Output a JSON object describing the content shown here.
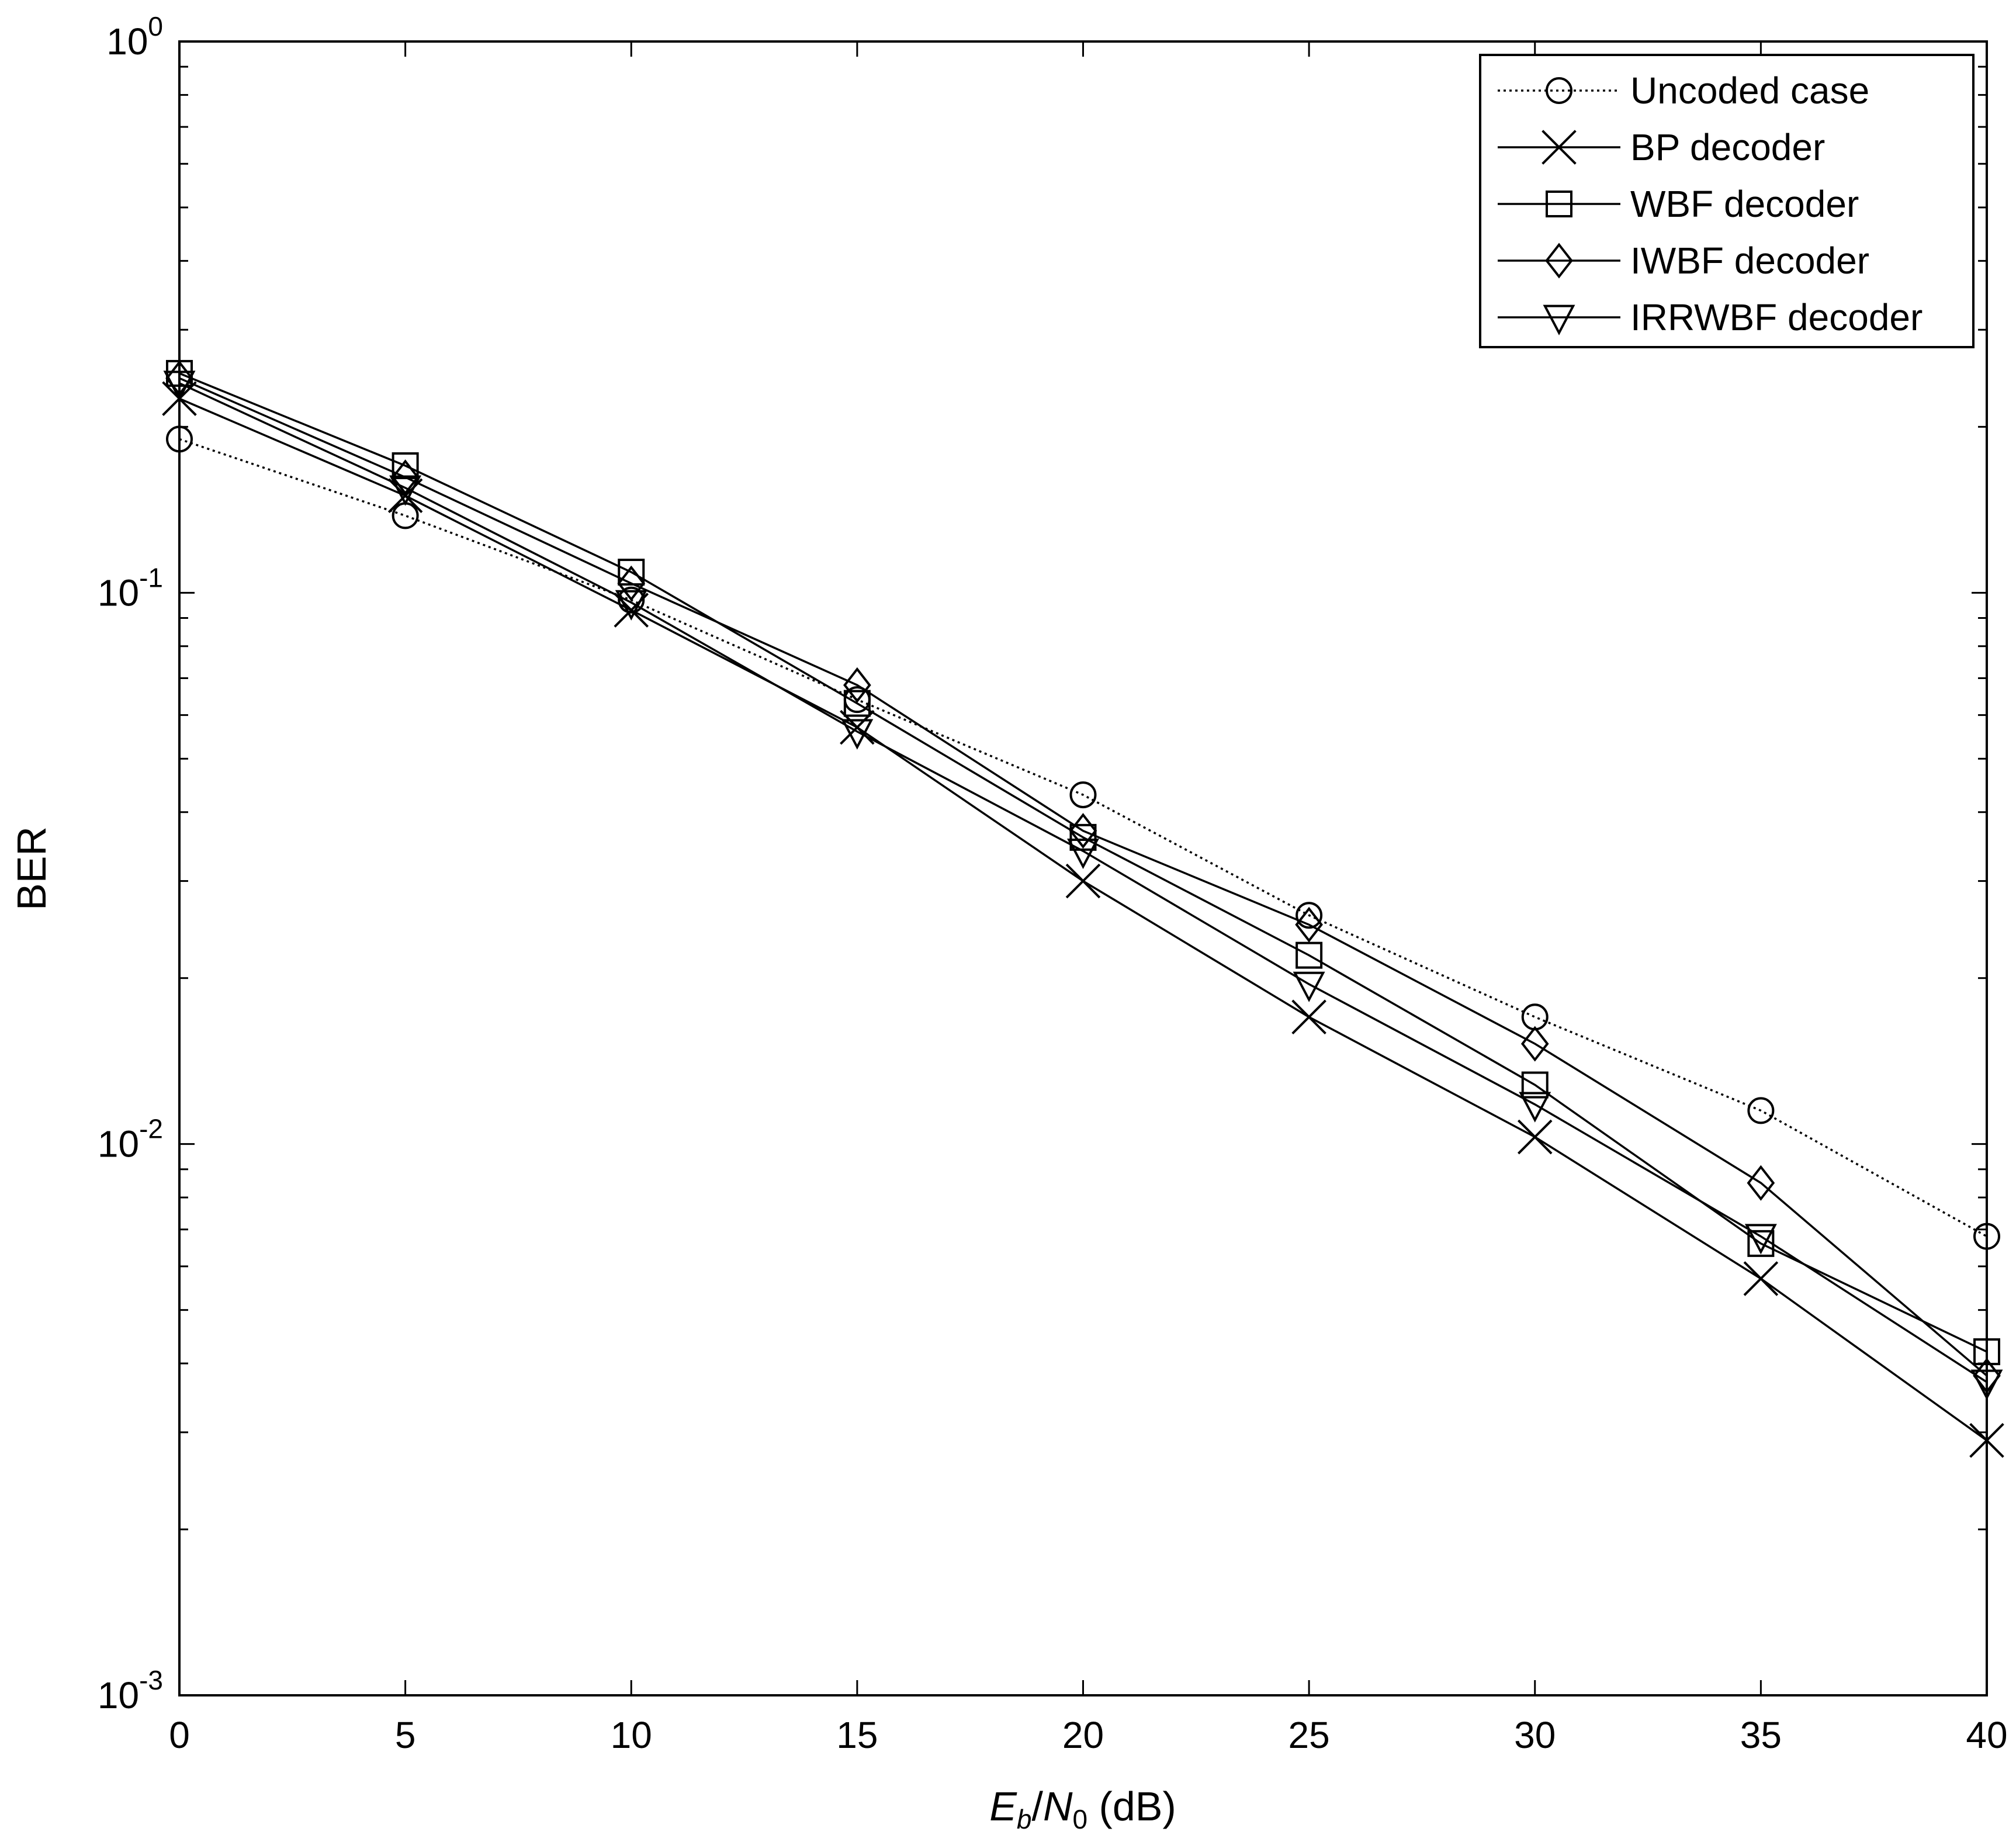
{
  "chart_data": {
    "type": "line",
    "xlabel": {
      "var_main": "E",
      "var_sub": "b",
      "sep": "/",
      "var2_main": "N",
      "var2_sub": "0",
      "unit": " (dB)"
    },
    "ylabel": "BER",
    "x_scale": "linear",
    "y_scale": "log",
    "xlim": [
      0,
      40
    ],
    "ylim": [
      0.001,
      1
    ],
    "x_ticks": [
      0,
      5,
      10,
      15,
      20,
      25,
      30,
      35,
      40
    ],
    "x_tick_labels": [
      "0",
      "5",
      "10",
      "15",
      "20",
      "25",
      "30",
      "35",
      "40"
    ],
    "y_decades": [
      {
        "value": 0.001,
        "base": "10",
        "exp": "-3"
      },
      {
        "value": 0.01,
        "base": "10",
        "exp": "-2"
      },
      {
        "value": 0.1,
        "base": "10",
        "exp": "-1"
      },
      {
        "value": 1,
        "base": "10",
        "exp": "0"
      }
    ],
    "grid": false,
    "legend_position": "top-right",
    "x": [
      0,
      5,
      10,
      15,
      20,
      25,
      30,
      35,
      40
    ],
    "series": [
      {
        "name": "Uncoded case",
        "marker": "circle",
        "line": "dotted",
        "color": "#000000",
        "values": [
          0.19,
          0.138,
          0.097,
          0.064,
          0.043,
          0.026,
          0.017,
          0.0115,
          0.0068
        ]
      },
      {
        "name": "BP decoder",
        "marker": "x",
        "line": "solid",
        "color": "#000000",
        "values": [
          0.225,
          0.15,
          0.093,
          0.057,
          0.03,
          0.017,
          0.0103,
          0.0057,
          0.0029
        ]
      },
      {
        "name": "WBF decoder",
        "marker": "square",
        "line": "solid",
        "color": "#000000",
        "values": [
          0.25,
          0.17,
          0.109,
          0.063,
          0.036,
          0.022,
          0.0128,
          0.0066,
          0.0042
        ]
      },
      {
        "name": "IWBF decoder",
        "marker": "diamond",
        "line": "solid",
        "color": "#000000",
        "values": [
          0.245,
          0.162,
          0.104,
          0.068,
          0.037,
          0.025,
          0.0152,
          0.0085,
          0.0038
        ]
      },
      {
        "name": "IRRWBF decoder",
        "marker": "triangle-down",
        "line": "solid",
        "color": "#000000",
        "values": [
          0.24,
          0.155,
          0.096,
          0.056,
          0.034,
          0.0195,
          0.0118,
          0.0068,
          0.0037
        ]
      }
    ]
  }
}
